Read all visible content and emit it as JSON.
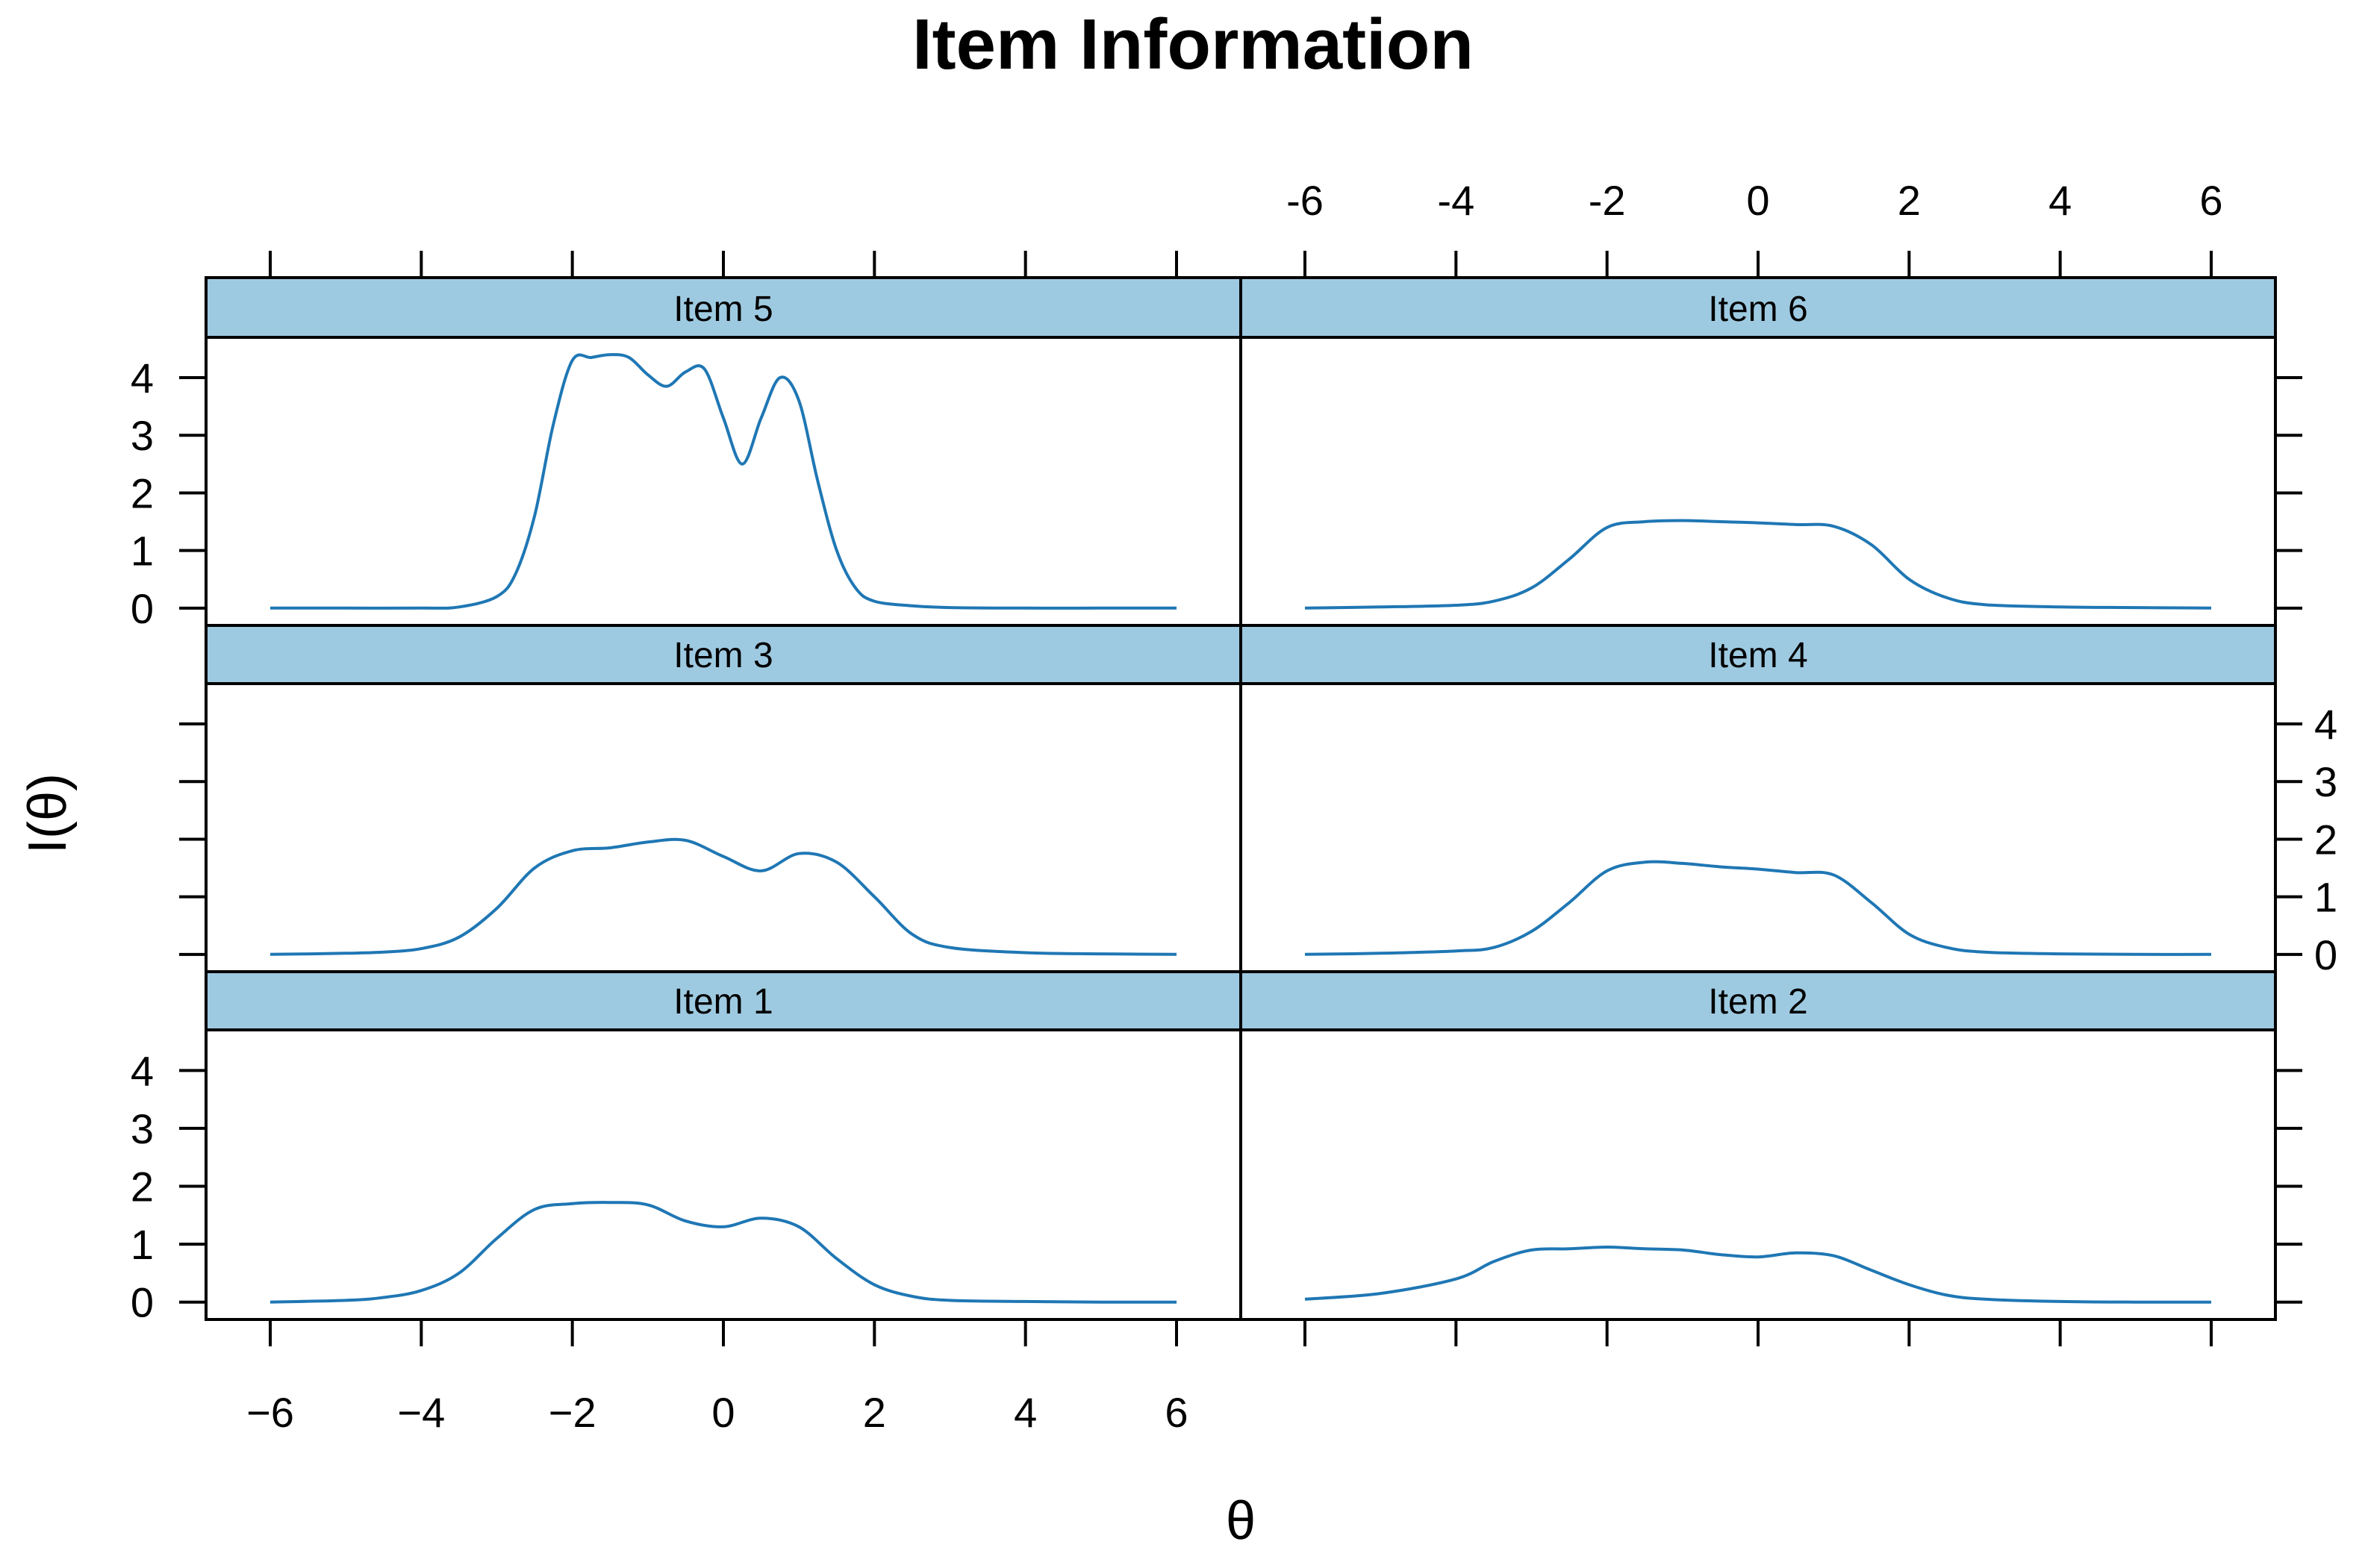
{
  "chart_data": {
    "type": "line",
    "title": "Item Information",
    "xlabel": "θ",
    "ylabel": "I(θ)",
    "xlim": [
      -6.85,
      6.85
    ],
    "ylim": [
      -0.3,
      4.7
    ],
    "x_ticks": [
      -6,
      -4,
      -2,
      0,
      2,
      4,
      6
    ],
    "y_ticks": [
      0,
      1,
      2,
      3,
      4
    ],
    "grid": false,
    "layout": "3 rows x 2 columns",
    "line_color": "#1f77b4",
    "strip_color": "#9ecae1",
    "panels": [
      {
        "name": "Item 5",
        "row": 0,
        "col": 0,
        "x": [
          -6,
          -5,
          -4,
          -3.5,
          -3,
          -2.75,
          -2.5,
          -2.25,
          -2,
          -1.75,
          -1.5,
          -1.25,
          -1,
          -0.75,
          -0.5,
          -0.25,
          0,
          0.25,
          0.5,
          0.75,
          1,
          1.25,
          1.5,
          1.75,
          2,
          2.5,
          3,
          4,
          5,
          6
        ],
        "y": [
          0,
          0,
          0,
          0.02,
          0.2,
          0.6,
          1.6,
          3.2,
          4.3,
          4.35,
          4.4,
          4.35,
          4.05,
          3.85,
          4.1,
          4.15,
          3.3,
          2.5,
          3.3,
          4.0,
          3.6,
          2.2,
          1.0,
          0.35,
          0.12,
          0.04,
          0.01,
          0,
          0,
          0
        ]
      },
      {
        "name": "Item 6",
        "row": 0,
        "col": 1,
        "x": [
          -6,
          -5,
          -4,
          -3.5,
          -3,
          -2.5,
          -2,
          -1.5,
          -1,
          -0.5,
          0,
          0.5,
          1,
          1.5,
          2,
          2.5,
          3,
          4,
          5,
          6
        ],
        "y": [
          0,
          0.02,
          0.05,
          0.12,
          0.35,
          0.85,
          1.4,
          1.5,
          1.52,
          1.5,
          1.48,
          1.45,
          1.42,
          1.1,
          0.5,
          0.18,
          0.06,
          0.02,
          0.01,
          0
        ]
      },
      {
        "name": "Item 3",
        "row": 1,
        "col": 0,
        "x": [
          -6,
          -5,
          -4.5,
          -4,
          -3.5,
          -3,
          -2.5,
          -2,
          -1.5,
          -1,
          -0.5,
          0,
          0.5,
          1,
          1.5,
          2,
          2.5,
          3,
          4,
          5,
          6
        ],
        "y": [
          0,
          0.02,
          0.04,
          0.1,
          0.3,
          0.8,
          1.5,
          1.8,
          1.85,
          1.95,
          1.98,
          1.7,
          1.45,
          1.75,
          1.6,
          1.0,
          0.35,
          0.12,
          0.03,
          0.01,
          0
        ]
      },
      {
        "name": "Item 4",
        "row": 1,
        "col": 1,
        "x": [
          -6,
          -5,
          -4,
          -3.5,
          -3,
          -2.5,
          -2,
          -1.5,
          -1,
          -0.5,
          0,
          0.5,
          1,
          1.5,
          2,
          2.5,
          3,
          4,
          5,
          6
        ],
        "y": [
          0,
          0.02,
          0.06,
          0.12,
          0.4,
          0.9,
          1.45,
          1.6,
          1.58,
          1.52,
          1.48,
          1.42,
          1.38,
          0.9,
          0.35,
          0.12,
          0.04,
          0.01,
          0,
          0
        ]
      },
      {
        "name": "Item 1",
        "row": 2,
        "col": 0,
        "x": [
          -6,
          -5,
          -4.5,
          -4,
          -3.5,
          -3,
          -2.5,
          -2,
          -1.5,
          -1,
          -0.5,
          0,
          0.5,
          1,
          1.5,
          2,
          2.5,
          3,
          4,
          5,
          6
        ],
        "y": [
          0,
          0.03,
          0.08,
          0.2,
          0.5,
          1.1,
          1.6,
          1.7,
          1.72,
          1.68,
          1.4,
          1.3,
          1.45,
          1.3,
          0.75,
          0.3,
          0.1,
          0.03,
          0.01,
          0,
          0
        ]
      },
      {
        "name": "Item 2",
        "row": 2,
        "col": 1,
        "x": [
          -6,
          -5,
          -4,
          -3.5,
          -3,
          -2.5,
          -2,
          -1.5,
          -1,
          -0.5,
          0,
          0.5,
          1,
          1.5,
          2,
          2.5,
          3,
          4,
          5,
          6
        ],
        "y": [
          0.05,
          0.15,
          0.4,
          0.7,
          0.9,
          0.92,
          0.95,
          0.92,
          0.9,
          0.82,
          0.78,
          0.85,
          0.8,
          0.55,
          0.3,
          0.12,
          0.05,
          0.01,
          0,
          0
        ]
      }
    ]
  }
}
